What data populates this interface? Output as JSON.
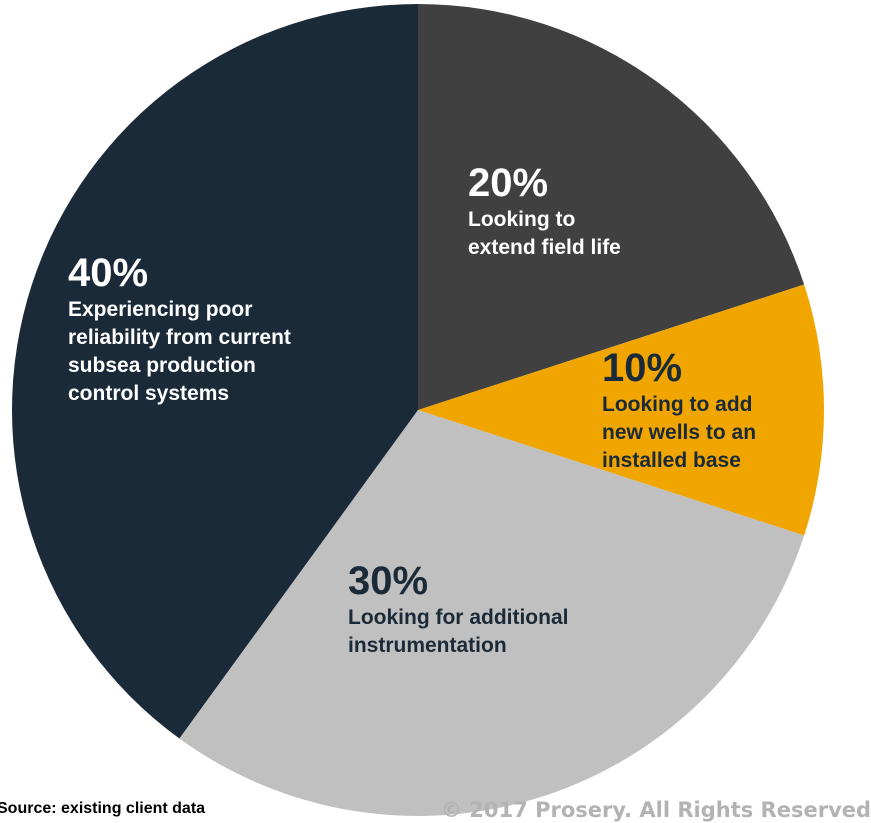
{
  "chart_data": {
    "type": "pie",
    "categories": [
      "Looking to extend field life",
      "Looking to add new wells to an installed base",
      "Looking for additional instrumentation",
      "Experiencing poor reliability from current subsea production control systems"
    ],
    "values": [
      20,
      10,
      30,
      40
    ],
    "labels": [
      {
        "pct": "20%",
        "desc": "Looking to\nextend field life"
      },
      {
        "pct": "10%",
        "desc": "Looking to add\nnew wells to an\ninstalled base"
      },
      {
        "pct": "30%",
        "desc": "Looking for additional\ninstrumentation"
      },
      {
        "pct": "40%",
        "desc": "Experiencing poor\nreliability from current\nsubsea production\ncontrol systems"
      }
    ],
    "colors": [
      "#404040",
      "#f0a500",
      "#c0c0c0",
      "#1b2a38"
    ],
    "start_angle_deg": 0,
    "direction": "clockwise",
    "legend": "none"
  },
  "footer": {
    "source": "Source: existing client data",
    "copyright": "© 2017 Prosery. All Rights Reserved"
  }
}
